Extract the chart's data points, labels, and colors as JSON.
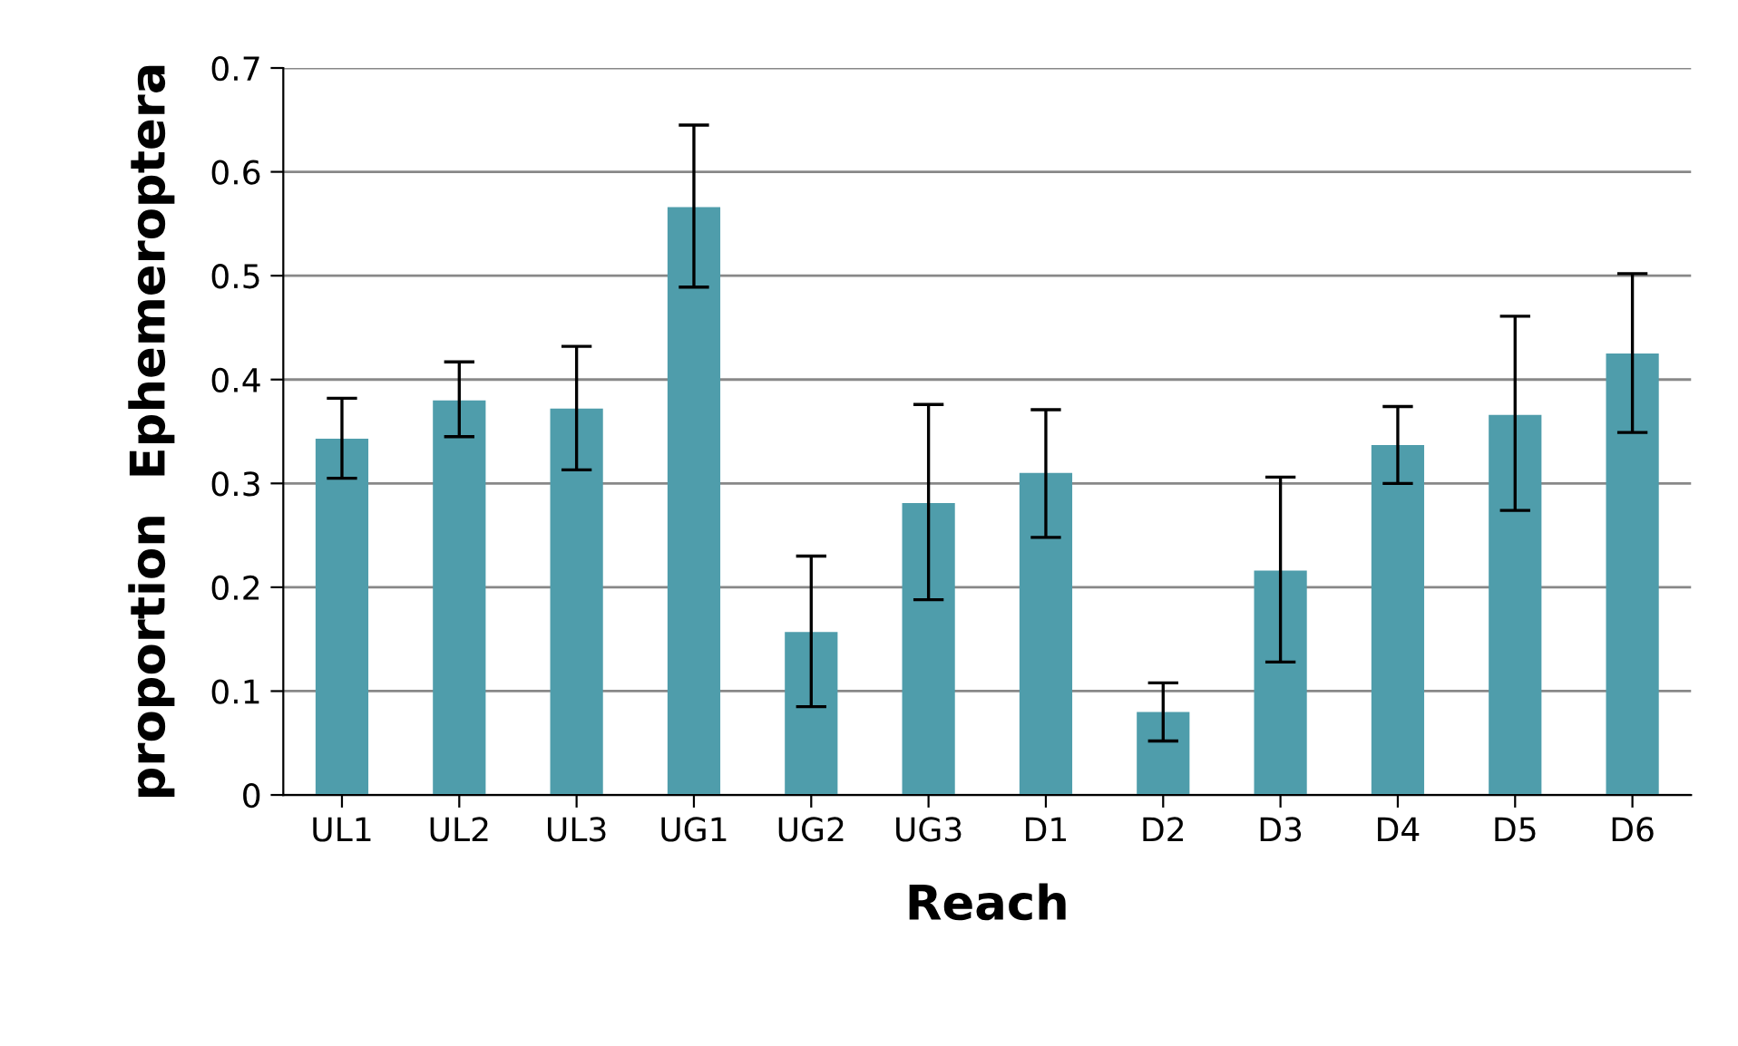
{
  "chart_data": {
    "type": "bar",
    "xlabel": "Reach",
    "ylabel": "proportion  Ephemeroptera",
    "categories": [
      "UL1",
      "UL2",
      "UL3",
      "UG1",
      "UG2",
      "UG3",
      "D1",
      "D2",
      "D3",
      "D4",
      "D5",
      "D6"
    ],
    "values": [
      0.343,
      0.38,
      0.372,
      0.566,
      0.157,
      0.281,
      0.31,
      0.08,
      0.216,
      0.337,
      0.366,
      0.425
    ],
    "errors": [
      [
        0.305,
        0.382
      ],
      [
        0.345,
        0.417
      ],
      [
        0.313,
        0.432
      ],
      [
        0.489,
        0.645
      ],
      [
        0.085,
        0.23
      ],
      [
        0.188,
        0.376
      ],
      [
        0.248,
        0.371
      ],
      [
        0.052,
        0.108
      ],
      [
        0.128,
        0.306
      ],
      [
        0.3,
        0.374
      ],
      [
        0.274,
        0.461
      ],
      [
        0.349,
        0.502
      ]
    ],
    "color": "#4f9dab",
    "ylim": [
      0,
      0.7
    ],
    "yticks": [
      {
        "value": 0,
        "label": "0"
      },
      0.1,
      0.2,
      0.3,
      0.4,
      0.5,
      0.6,
      0.7
    ],
    "grid": "y"
  }
}
